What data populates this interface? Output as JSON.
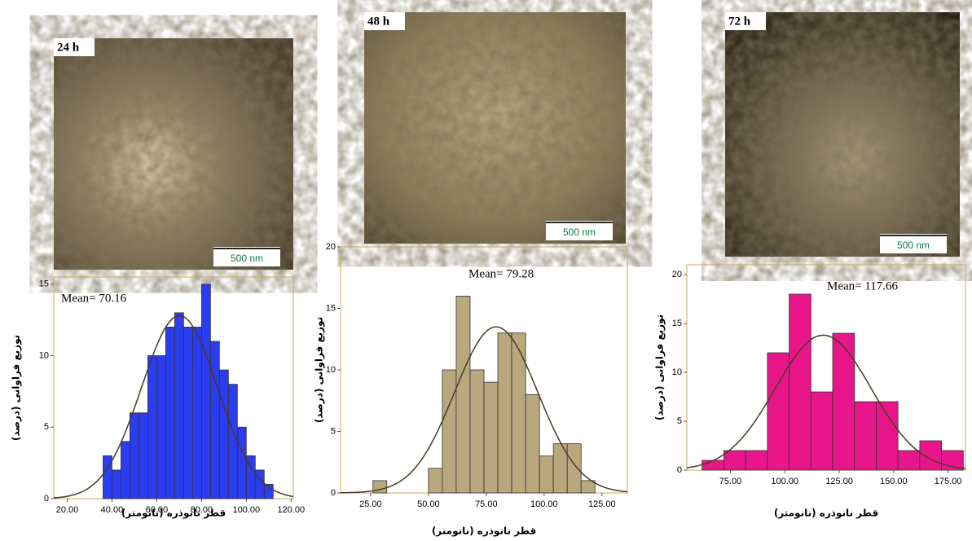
{
  "chart_data": [
    {
      "type": "histogram",
      "image_label": "24 h",
      "scale_bar": "500 nm",
      "annotation": "Mean= 70.16",
      "x_label": "قطر نانوذره (نانومتر)",
      "y_label": "توزیع فراوانی (درصد)",
      "color": "#2b3df0",
      "bins": [
        36,
        40,
        44,
        48,
        52,
        56,
        60,
        64,
        68,
        72,
        76,
        80,
        84,
        88,
        92,
        96,
        100,
        104,
        108,
        112
      ],
      "values": [
        3,
        2,
        4,
        6,
        6,
        10,
        10,
        12,
        13,
        12,
        12,
        15,
        11,
        9,
        8,
        5,
        3,
        2,
        1
      ],
      "fit": {
        "mean": 70.16,
        "sd": 17,
        "peak": 12.8
      },
      "xlim": [
        14,
        121
      ],
      "ylim": [
        0,
        15.5
      ],
      "xticks": [
        {
          "value": 20,
          "label": "20.00"
        },
        {
          "value": 40,
          "label": "40.00"
        },
        {
          "value": 60,
          "label": "60.00"
        },
        {
          "value": 80,
          "label": "80.00"
        },
        {
          "value": 100,
          "label": "100.00"
        },
        {
          "value": 120,
          "label": "120.00"
        }
      ],
      "yticks": [
        0,
        5,
        10,
        15
      ]
    },
    {
      "type": "histogram",
      "image_label": "48 h",
      "scale_bar": "500 nm",
      "annotation": "Mean= 79.28",
      "x_label": "قطر نانوذره (نانومتر)",
      "y_label": "توزیع فراوانی (درصد)",
      "color": "#b9a77e",
      "bins": [
        26,
        32,
        38,
        44,
        50,
        56,
        62,
        68,
        74,
        80,
        86,
        92,
        98,
        104,
        110,
        116,
        122
      ],
      "values": [
        1,
        0,
        0,
        0,
        2,
        10,
        16,
        10,
        9,
        13,
        13,
        8,
        3,
        4,
        4,
        1
      ],
      "fit": {
        "mean": 79.28,
        "sd": 18,
        "peak": 13.5
      },
      "xlim": [
        12,
        136
      ],
      "ylim": [
        0,
        20
      ],
      "xticks": [
        {
          "value": 25,
          "label": "25.00"
        },
        {
          "value": 50,
          "label": "50.00"
        },
        {
          "value": 75,
          "label": "75.00"
        },
        {
          "value": 100,
          "label": "100.00"
        },
        {
          "value": 125,
          "label": "125.00"
        }
      ],
      "yticks": [
        0,
        5,
        10,
        15,
        20
      ]
    },
    {
      "type": "histogram",
      "image_label": "72 h",
      "scale_bar": "500 nm",
      "annotation": "Mean= 117.66",
      "x_label": "قطر نانوذره (نانومتر)",
      "y_label": "توزیع فراوانی (درصد)",
      "color": "#e8168a",
      "bins": [
        62,
        72,
        82,
        92,
        102,
        112,
        122,
        132,
        142,
        152,
        162,
        172,
        182
      ],
      "values": [
        1,
        2,
        2,
        12,
        18,
        8,
        14,
        7,
        7,
        2,
        3,
        2
      ],
      "fit": {
        "mean": 117.66,
        "sd": 22,
        "peak": 13.8
      },
      "xlim": [
        55,
        183
      ],
      "ylim": [
        0,
        21
      ],
      "xticks": [
        {
          "value": 75,
          "label": "75.00"
        },
        {
          "value": 100,
          "label": "100.00"
        },
        {
          "value": 125,
          "label": "125.00"
        },
        {
          "value": 150,
          "label": "150.00"
        },
        {
          "value": 175,
          "label": "175.00"
        }
      ],
      "yticks": [
        0,
        5,
        10,
        15,
        20
      ]
    }
  ]
}
